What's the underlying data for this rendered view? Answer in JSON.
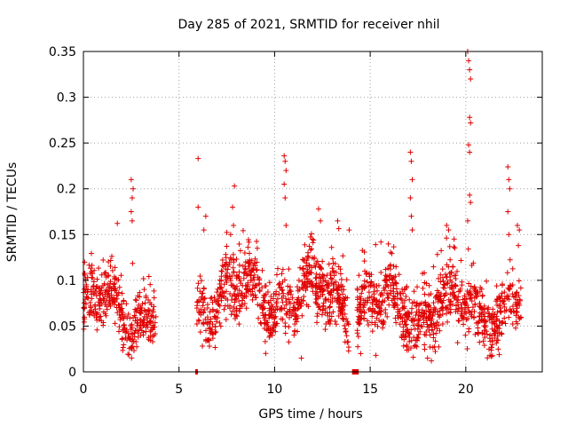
{
  "chart_data": {
    "type": "scatter",
    "title": "Day 285 of 2021, SRMTID for receiver nhil",
    "xlabel": "GPS time / hours",
    "ylabel": "SRMTID / TECUs",
    "xlim": [
      0,
      24
    ],
    "ylim": [
      0,
      0.35
    ],
    "x_ticks": [
      0,
      5,
      10,
      15,
      20
    ],
    "x_tick_labels": [
      "0",
      "5",
      "10",
      "15",
      "20"
    ],
    "y_ticks": [
      0,
      0.05,
      0.1,
      0.15,
      0.2,
      0.25,
      0.3,
      0.35
    ],
    "y_tick_labels": [
      "0",
      "0.05",
      "0.1",
      "0.15",
      "0.2",
      "0.25",
      "0.3",
      "0.35"
    ],
    "grid": true,
    "marker": "+",
    "color": "#e00000",
    "series": [
      {
        "name": "SRMTID",
        "segments": [
          {
            "x_start": 0.0,
            "x_end": 3.8,
            "base": 0.068,
            "spread": 0.028
          },
          {
            "x_start": 5.9,
            "x_end": 13.9,
            "base": 0.082,
            "spread": 0.03
          },
          {
            "x_start": 14.3,
            "x_end": 22.9,
            "base": 0.07,
            "spread": 0.03
          }
        ],
        "points": [
          [
            2.5,
            0.21
          ],
          [
            2.55,
            0.19
          ],
          [
            2.6,
            0.2
          ],
          [
            2.5,
            0.175
          ],
          [
            2.55,
            0.165
          ],
          [
            6.0,
            0.233
          ],
          [
            6.0,
            0.18
          ],
          [
            6.4,
            0.17
          ],
          [
            6.3,
            0.155
          ],
          [
            7.9,
            0.203
          ],
          [
            7.8,
            0.18
          ],
          [
            7.85,
            0.16
          ],
          [
            7.7,
            0.15
          ],
          [
            10.5,
            0.236
          ],
          [
            10.55,
            0.23
          ],
          [
            10.6,
            0.22
          ],
          [
            10.5,
            0.205
          ],
          [
            10.55,
            0.19
          ],
          [
            10.6,
            0.16
          ],
          [
            11.4,
            0.015
          ],
          [
            12.3,
            0.178
          ],
          [
            12.4,
            0.165
          ],
          [
            13.3,
            0.165
          ],
          [
            13.9,
            0.155
          ],
          [
            14.5,
            0.02
          ],
          [
            15.3,
            0.018
          ],
          [
            17.1,
            0.24
          ],
          [
            17.15,
            0.23
          ],
          [
            17.2,
            0.21
          ],
          [
            17.1,
            0.19
          ],
          [
            17.15,
            0.17
          ],
          [
            17.2,
            0.155
          ],
          [
            18.0,
            0.015
          ],
          [
            18.2,
            0.012
          ],
          [
            19.0,
            0.16
          ],
          [
            19.1,
            0.155
          ],
          [
            20.1,
            0.35
          ],
          [
            20.15,
            0.34
          ],
          [
            20.2,
            0.33
          ],
          [
            20.25,
            0.32
          ],
          [
            20.2,
            0.278
          ],
          [
            20.25,
            0.272
          ],
          [
            20.15,
            0.248
          ],
          [
            20.2,
            0.24
          ],
          [
            20.2,
            0.193
          ],
          [
            20.25,
            0.185
          ],
          [
            20.1,
            0.165
          ],
          [
            22.2,
            0.224
          ],
          [
            22.25,
            0.21
          ],
          [
            22.3,
            0.2
          ],
          [
            22.2,
            0.175
          ],
          [
            22.25,
            0.15
          ],
          [
            22.7,
            0.16
          ],
          [
            22.8,
            0.155
          ],
          [
            22.75,
            0.138
          ]
        ]
      }
    ],
    "gap_markers": [
      {
        "x_start": 5.85,
        "x_end": 5.98,
        "y": 0
      },
      {
        "x_start": 14.05,
        "x_end": 14.4,
        "y": 0
      }
    ]
  }
}
